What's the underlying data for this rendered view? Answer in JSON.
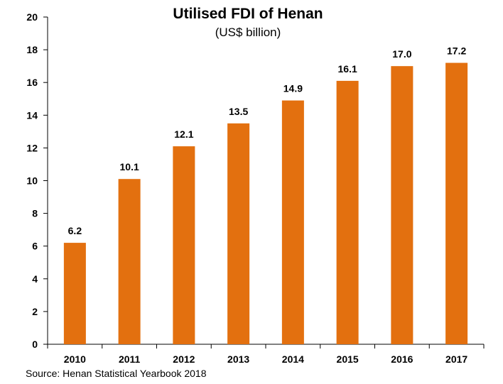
{
  "chart_data": {
    "type": "bar",
    "title": "Utilised FDI of Henan",
    "subtitle": "(US$ billion)",
    "categories": [
      "2010",
      "2011",
      "2012",
      "2013",
      "2014",
      "2015",
      "2016",
      "2017"
    ],
    "values": [
      6.2,
      10.1,
      12.1,
      13.5,
      14.9,
      16.1,
      17.0,
      17.2
    ],
    "data_labels": [
      "6.2",
      "10.1",
      "12.1",
      "13.5",
      "14.9",
      "16.1",
      "17.0",
      "17.2"
    ],
    "ylim": [
      0,
      20
    ],
    "yticks": [
      "0",
      "2",
      "4",
      "6",
      "8",
      "10",
      "12",
      "14",
      "16",
      "18",
      "20"
    ],
    "xlabel": "",
    "ylabel": "",
    "grid": false,
    "legend": "none",
    "bar_color": "#E3700F"
  },
  "source": "Source: Henan Statistical Yearbook 2018"
}
